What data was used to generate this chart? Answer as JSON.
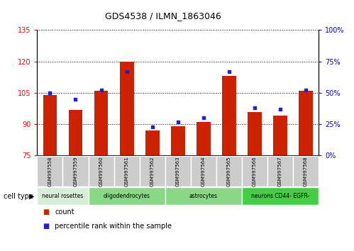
{
  "title": "GDS4538 / ILMN_1863046",
  "samples": [
    "GSM997558",
    "GSM997559",
    "GSM997560",
    "GSM997561",
    "GSM997562",
    "GSM997563",
    "GSM997564",
    "GSM997565",
    "GSM997566",
    "GSM997567",
    "GSM997568"
  ],
  "counts": [
    104,
    97,
    106,
    120,
    87,
    89,
    91,
    113,
    96,
    94,
    106
  ],
  "percentiles": [
    50,
    45,
    52,
    67,
    23,
    27,
    30,
    67,
    38,
    37,
    52
  ],
  "left_ylim": [
    75,
    135
  ],
  "right_ylim": [
    0,
    100
  ],
  "left_yticks": [
    75,
    90,
    105,
    120,
    135
  ],
  "right_yticks": [
    0,
    25,
    50,
    75,
    100
  ],
  "right_yticklabels": [
    "0%",
    "25%",
    "50%",
    "75%",
    "100%"
  ],
  "cell_types": [
    {
      "label": "neural rosettes",
      "start": 0,
      "end": 2,
      "color": "#d8eed8"
    },
    {
      "label": "oligodendrocytes",
      "start": 2,
      "end": 5,
      "color": "#88d888"
    },
    {
      "label": "astrocytes",
      "start": 5,
      "end": 8,
      "color": "#88d888"
    },
    {
      "label": "neurons CD44- EGFR-",
      "start": 8,
      "end": 11,
      "color": "#44cc44"
    }
  ],
  "bar_color": "#cc2200",
  "dot_color": "#2222cc",
  "bar_width": 0.55,
  "background_color": "#ffffff",
  "sample_bg_color": "#cccccc"
}
